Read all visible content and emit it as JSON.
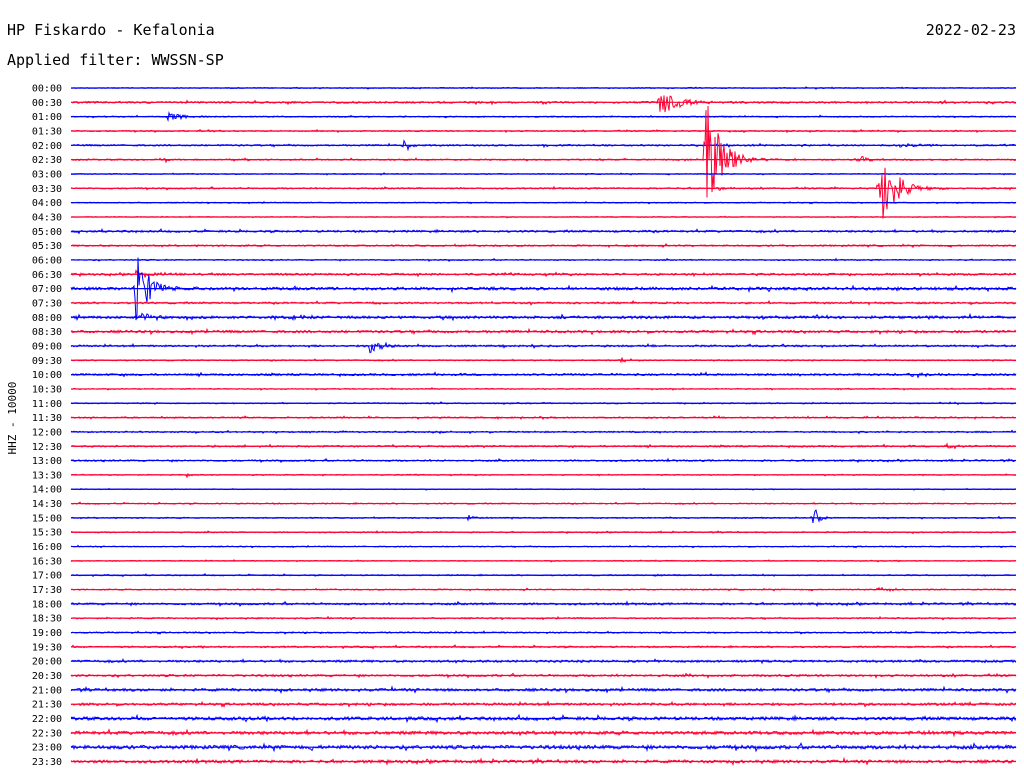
{
  "header": {
    "station": "HP Fiskardo - Kefalonia",
    "date": "2022-02-23",
    "filter": "Applied filter: WWSSN-SP"
  },
  "chart_data": {
    "type": "line",
    "title": "HP Fiskardo - Kefalonia",
    "date": "2022-02-23",
    "subtitle": "Applied filter: WWSSN-SP",
    "ylabel": "HHZ - 10000",
    "xlabel": "",
    "colors": {
      "blue": "#0000ff",
      "red": "#ff0033"
    },
    "x_range_minutes": [
      0,
      30
    ],
    "grid": false,
    "rows": [
      {
        "label": "00:00",
        "color": "blue",
        "noise": 0.5,
        "events": []
      },
      {
        "label": "00:30",
        "color": "red",
        "noise": 0.9,
        "events": [
          {
            "t": 0.623,
            "amp": 14,
            "dur": 0.02
          }
        ]
      },
      {
        "label": "01:00",
        "color": "blue",
        "noise": 0.6,
        "events": [
          {
            "t": 0.102,
            "amp": 5,
            "dur": 0.015
          }
        ]
      },
      {
        "label": "01:30",
        "color": "red",
        "noise": 0.6,
        "events": [
          {
            "t": 0.143,
            "amp": 1.5,
            "dur": 0.01
          }
        ]
      },
      {
        "label": "02:00",
        "color": "blue",
        "noise": 0.8,
        "events": [
          {
            "t": 0.352,
            "amp": 10,
            "dur": 0.006
          },
          {
            "t": 0.875,
            "amp": 1.5,
            "dur": 0.03
          }
        ]
      },
      {
        "label": "02:30",
        "color": "red",
        "noise": 0.7,
        "events": [
          {
            "t": 0.671,
            "amp": 70,
            "dur": 0.015
          },
          {
            "t": 0.833,
            "amp": 4,
            "dur": 0.012
          },
          {
            "t": 0.1,
            "amp": 4,
            "dur": 0.002
          }
        ]
      },
      {
        "label": "03:00",
        "color": "blue",
        "noise": 0.5,
        "events": []
      },
      {
        "label": "03:30",
        "color": "red",
        "noise": 0.7,
        "events": [
          {
            "t": 0.854,
            "amp": 50,
            "dur": 0.015
          },
          {
            "t": 0.683,
            "amp": 3,
            "dur": 0.01
          }
        ]
      },
      {
        "label": "04:00",
        "color": "blue",
        "noise": 0.5,
        "events": []
      },
      {
        "label": "04:30",
        "color": "red",
        "noise": 0.4,
        "events": []
      },
      {
        "label": "05:00",
        "color": "blue",
        "noise": 1.0,
        "events": []
      },
      {
        "label": "05:30",
        "color": "red",
        "noise": 0.8,
        "events": []
      },
      {
        "label": "06:00",
        "color": "blue",
        "noise": 0.6,
        "events": []
      },
      {
        "label": "06:30",
        "color": "red",
        "noise": 1.0,
        "events": [
          {
            "t": 0.068,
            "amp": 4,
            "dur": 0.02
          }
        ]
      },
      {
        "label": "07:00",
        "color": "blue",
        "noise": 1.4,
        "events": [
          {
            "t": 0.068,
            "amp": 45,
            "dur": 0.012
          }
        ]
      },
      {
        "label": "07:30",
        "color": "red",
        "noise": 0.9,
        "events": [
          {
            "t": 0.32,
            "amp": 2,
            "dur": 0.004
          }
        ]
      },
      {
        "label": "08:00",
        "color": "blue",
        "noise": 1.3,
        "events": [
          {
            "t": 0.075,
            "amp": 5,
            "dur": 0.008
          },
          {
            "t": 0.23,
            "amp": 3,
            "dur": 0.015
          }
        ]
      },
      {
        "label": "08:30",
        "color": "red",
        "noise": 1.2,
        "events": []
      },
      {
        "label": "09:00",
        "color": "blue",
        "noise": 0.9,
        "events": [
          {
            "t": 0.315,
            "amp": 8,
            "dur": 0.015
          }
        ]
      },
      {
        "label": "09:30",
        "color": "red",
        "noise": 0.6,
        "events": [
          {
            "t": 0.582,
            "amp": 4,
            "dur": 0.006
          }
        ]
      },
      {
        "label": "10:00",
        "color": "blue",
        "noise": 1.0,
        "events": [
          {
            "t": 0.888,
            "amp": 3,
            "dur": 0.02
          }
        ]
      },
      {
        "label": "10:30",
        "color": "red",
        "noise": 0.5,
        "events": []
      },
      {
        "label": "11:00",
        "color": "blue",
        "noise": 0.6,
        "events": []
      },
      {
        "label": "11:30",
        "color": "red",
        "noise": 0.7,
        "events": []
      },
      {
        "label": "12:00",
        "color": "blue",
        "noise": 0.7,
        "events": []
      },
      {
        "label": "12:30",
        "color": "red",
        "noise": 0.8,
        "events": [
          {
            "t": 0.925,
            "amp": 4,
            "dur": 0.012
          }
        ]
      },
      {
        "label": "13:00",
        "color": "blue",
        "noise": 0.8,
        "events": []
      },
      {
        "label": "13:30",
        "color": "red",
        "noise": 0.5,
        "events": [
          {
            "t": 0.122,
            "amp": 3,
            "dur": 0.003
          }
        ]
      },
      {
        "label": "14:00",
        "color": "blue",
        "noise": 0.4,
        "events": []
      },
      {
        "label": "14:30",
        "color": "red",
        "noise": 0.6,
        "events": []
      },
      {
        "label": "15:00",
        "color": "blue",
        "noise": 0.6,
        "events": [
          {
            "t": 0.42,
            "amp": 4,
            "dur": 0.008
          },
          {
            "t": 0.785,
            "amp": 18,
            "dur": 0.005
          }
        ]
      },
      {
        "label": "15:30",
        "color": "red",
        "noise": 0.6,
        "events": []
      },
      {
        "label": "16:00",
        "color": "blue",
        "noise": 0.5,
        "events": []
      },
      {
        "label": "16:30",
        "color": "red",
        "noise": 0.5,
        "events": []
      },
      {
        "label": "17:00",
        "color": "blue",
        "noise": 0.6,
        "events": [
          {
            "t": 0.615,
            "amp": 4,
            "dur": 0.004
          }
        ]
      },
      {
        "label": "17:30",
        "color": "red",
        "noise": 0.6,
        "events": [
          {
            "t": 0.854,
            "amp": 4,
            "dur": 0.01
          }
        ]
      },
      {
        "label": "18:00",
        "color": "blue",
        "noise": 1.0,
        "events": []
      },
      {
        "label": "18:30",
        "color": "red",
        "noise": 0.7,
        "events": []
      },
      {
        "label": "19:00",
        "color": "blue",
        "noise": 0.7,
        "events": []
      },
      {
        "label": "19:30",
        "color": "red",
        "noise": 0.8,
        "events": []
      },
      {
        "label": "20:00",
        "color": "blue",
        "noise": 1.1,
        "events": [
          {
            "t": 0.42,
            "amp": 2,
            "dur": 0.008
          }
        ]
      },
      {
        "label": "20:30",
        "color": "red",
        "noise": 1.0,
        "events": [
          {
            "t": 0.655,
            "amp": 3,
            "dur": 0.004
          }
        ]
      },
      {
        "label": "21:00",
        "color": "blue",
        "noise": 1.3,
        "events": []
      },
      {
        "label": "21:30",
        "color": "red",
        "noise": 1.2,
        "events": []
      },
      {
        "label": "22:00",
        "color": "blue",
        "noise": 1.6,
        "events": []
      },
      {
        "label": "22:30",
        "color": "red",
        "noise": 1.6,
        "events": [
          {
            "t": 0.895,
            "amp": 3,
            "dur": 0.01
          }
        ]
      },
      {
        "label": "23:00",
        "color": "blue",
        "noise": 1.8,
        "events": []
      },
      {
        "label": "23:30",
        "color": "red",
        "noise": 1.4,
        "events": []
      }
    ]
  }
}
